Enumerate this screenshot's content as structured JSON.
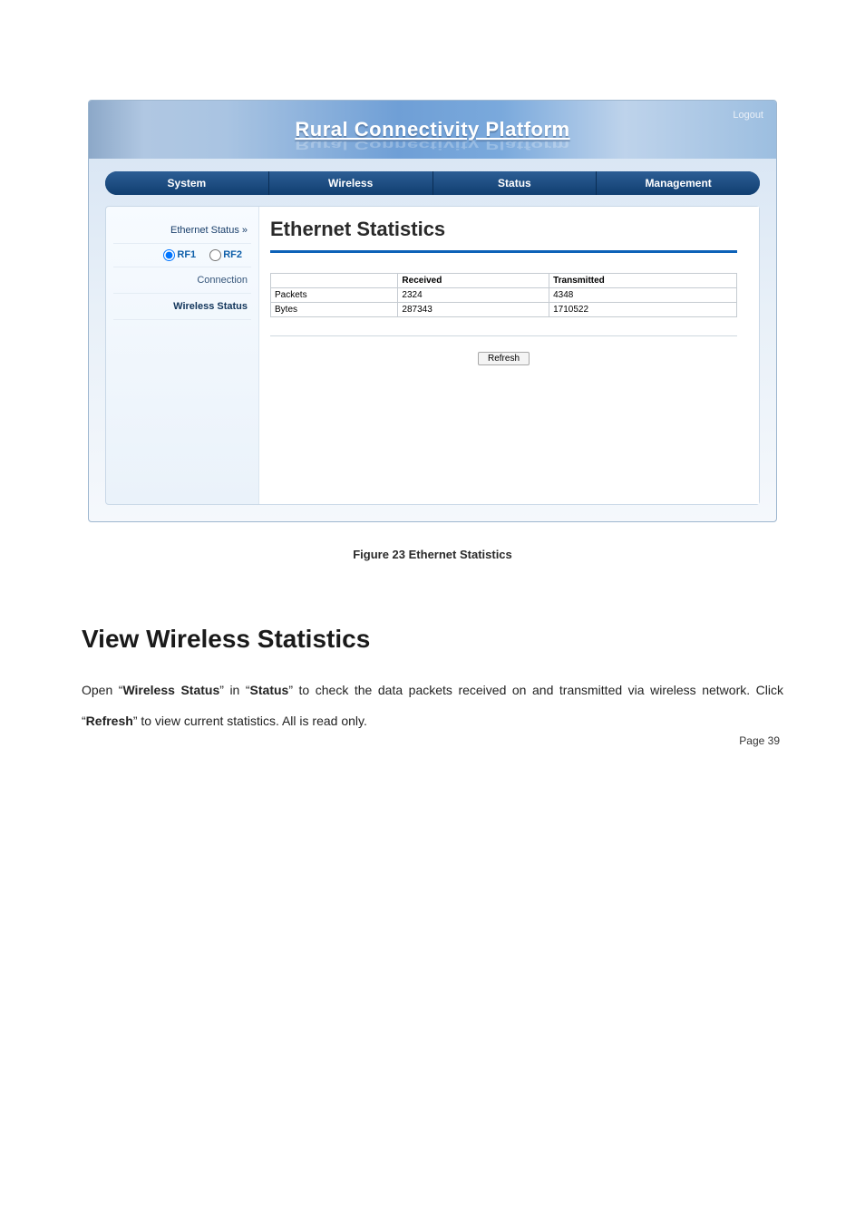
{
  "header": {
    "title": "Rural Connectivity Platform",
    "logout": "Logout"
  },
  "nav": {
    "items": [
      "System",
      "Wireless",
      "Status",
      "Management"
    ]
  },
  "sidebar": {
    "ethernet_status": "Ethernet Status  »",
    "rf1": "RF1",
    "rf2": "RF2",
    "connection": "Connection",
    "wireless_status": "Wireless Status"
  },
  "main": {
    "heading": "Ethernet Statistics",
    "columns": [
      "",
      "Received",
      "Transmitted"
    ],
    "rows": [
      {
        "label": "Packets",
        "received": "2324",
        "transmitted": "4348"
      },
      {
        "label": "Bytes",
        "received": "287343",
        "transmitted": "1710522"
      }
    ],
    "refresh": "Refresh"
  },
  "figure_caption": "Figure 23 Ethernet Statistics",
  "section_heading": "View Wireless Statistics",
  "body": {
    "pre1": "Open “",
    "b1": "Wireless Status",
    "mid1": "” in “",
    "b2": "Status",
    "mid2": "” to check the data packets received on and transmitted via wireless network. Click “",
    "b3": "Refresh",
    "post": "” to view current statistics. All is read only."
  },
  "page_label": "Page  39"
}
